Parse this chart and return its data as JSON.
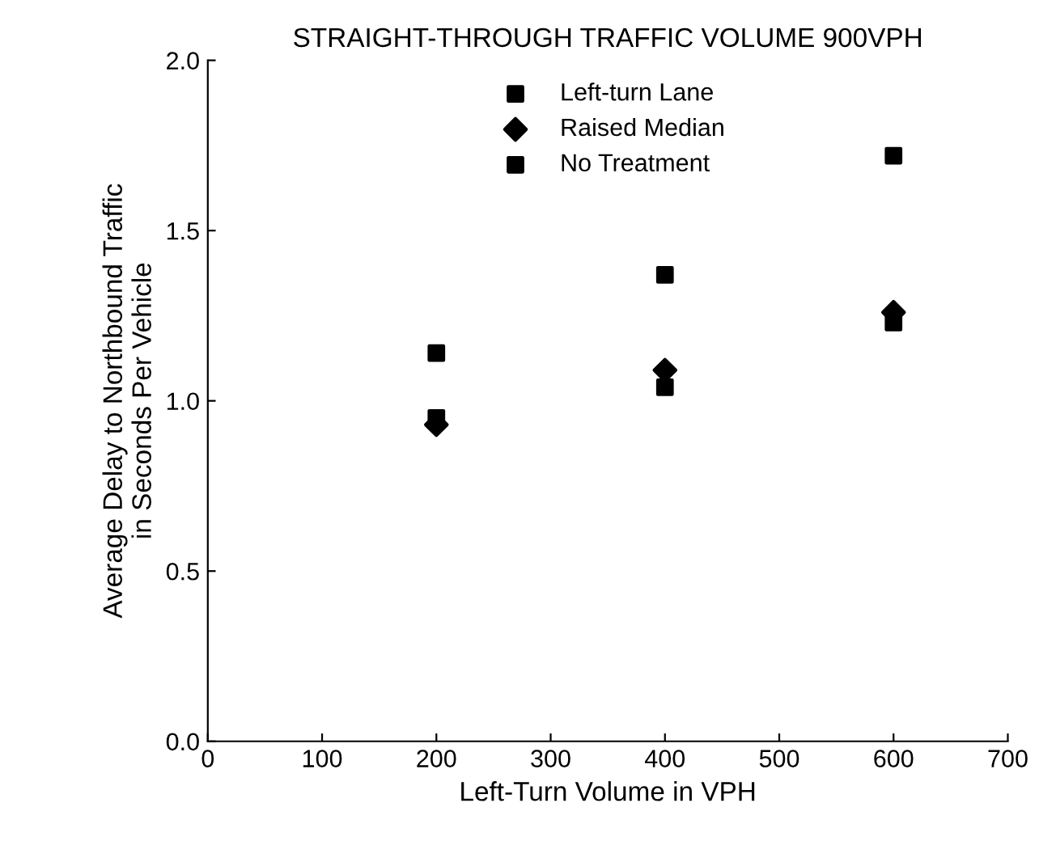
{
  "chart_data": {
    "type": "scatter",
    "title": "STRAIGHT-THROUGH TRAFFIC VOLUME 900VPH",
    "xlabel": "Left-Turn Volume in VPH",
    "ylabel": "Average Delay to Northbound Traffic\nin Seconds Per Vehicle",
    "x": [
      200,
      400,
      600
    ],
    "series": [
      {
        "name": "Left-turn Lane",
        "color": "#000000",
        "marker": "square",
        "values": [
          0.95,
          1.04,
          1.23
        ]
      },
      {
        "name": "Raised Median",
        "color": "#000000",
        "marker": "diamond",
        "values": [
          0.93,
          1.09,
          1.26
        ]
      },
      {
        "name": "No Treatment",
        "color": "#000000",
        "marker": "square",
        "values": [
          1.14,
          1.37,
          1.72
        ]
      }
    ],
    "xlim": [
      0,
      700
    ],
    "xticks": [
      0,
      100,
      200,
      300,
      400,
      500,
      600,
      700
    ],
    "ylim": [
      0,
      2
    ],
    "yticks": [
      {
        "value": 0,
        "label": "0.0"
      },
      {
        "value": 0.5,
        "label": "0.5"
      },
      {
        "value": 1,
        "label": "1.0"
      },
      {
        "value": 1.5,
        "label": "1.5"
      },
      {
        "value": 2,
        "label": "2.0"
      }
    ],
    "grid": false,
    "legend": "top"
  }
}
